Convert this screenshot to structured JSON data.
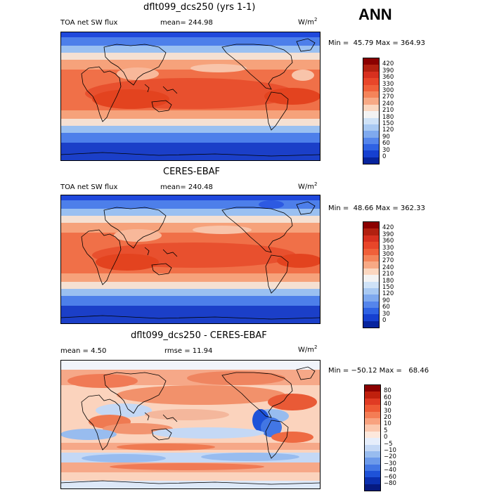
{
  "season": "ANN",
  "units_base": "W/m",
  "units_exp": "2",
  "panels": [
    {
      "id": "test",
      "title": "dflt099_dcs250 (yrs 1-1)",
      "left_text": "TOA net SW flux",
      "mid_text": "mean= 244.98",
      "minmax": "Min =  45.79 Max = 364.93",
      "levels": [
        "420",
        "390",
        "360",
        "330",
        "300",
        "270",
        "240",
        "210",
        "180",
        "150",
        "120",
        "90",
        "60",
        "30",
        "0"
      ],
      "colors": [
        "#8b0000",
        "#b22010",
        "#d7301f",
        "#e8462a",
        "#f0603a",
        "#f4845a",
        "#f7a985",
        "#fbd7c0",
        "#f3f3f3",
        "#cfe2f7",
        "#a9c9f2",
        "#7fa9ee",
        "#5585eb",
        "#2f62e3",
        "#1640d0",
        "#07249d"
      ]
    },
    {
      "id": "obs",
      "title": "CERES-EBAF",
      "left_text": "TOA net SW flux",
      "mid_text": "mean= 240.48",
      "minmax": "Min =  48.66 Max = 362.33",
      "levels": [
        "420",
        "390",
        "360",
        "330",
        "300",
        "270",
        "240",
        "210",
        "180",
        "150",
        "120",
        "90",
        "60",
        "30",
        "0"
      ],
      "colors": [
        "#8b0000",
        "#b22010",
        "#d7301f",
        "#e8462a",
        "#f0603a",
        "#f4845a",
        "#f7a985",
        "#fbd7c0",
        "#f3f3f3",
        "#cfe2f7",
        "#a9c9f2",
        "#7fa9ee",
        "#5585eb",
        "#2f62e3",
        "#1640d0",
        "#07249d"
      ]
    },
    {
      "id": "diff",
      "title": "dflt099_dcs250 - CERES-EBAF",
      "left_text": "mean =    4.50",
      "mid_text": "rmse =   11.94",
      "minmax": "Min = −50.12 Max =   68.46",
      "levels": [
        "80",
        "60",
        "40",
        "30",
        "20",
        "10",
        "5",
        "0",
        "−5",
        "−10",
        "−20",
        "−30",
        "−40",
        "−60",
        "−80"
      ],
      "colors": [
        "#8b0000",
        "#c0200d",
        "#e03b23",
        "#ee5a35",
        "#f47d55",
        "#f8a27f",
        "#fbc8ae",
        "#fde8dc",
        "#e6eefb",
        "#c4d8f5",
        "#98bcef",
        "#6c9aea",
        "#4276e4",
        "#1e52d8",
        "#0b30b0",
        "#061a80"
      ]
    }
  ]
}
